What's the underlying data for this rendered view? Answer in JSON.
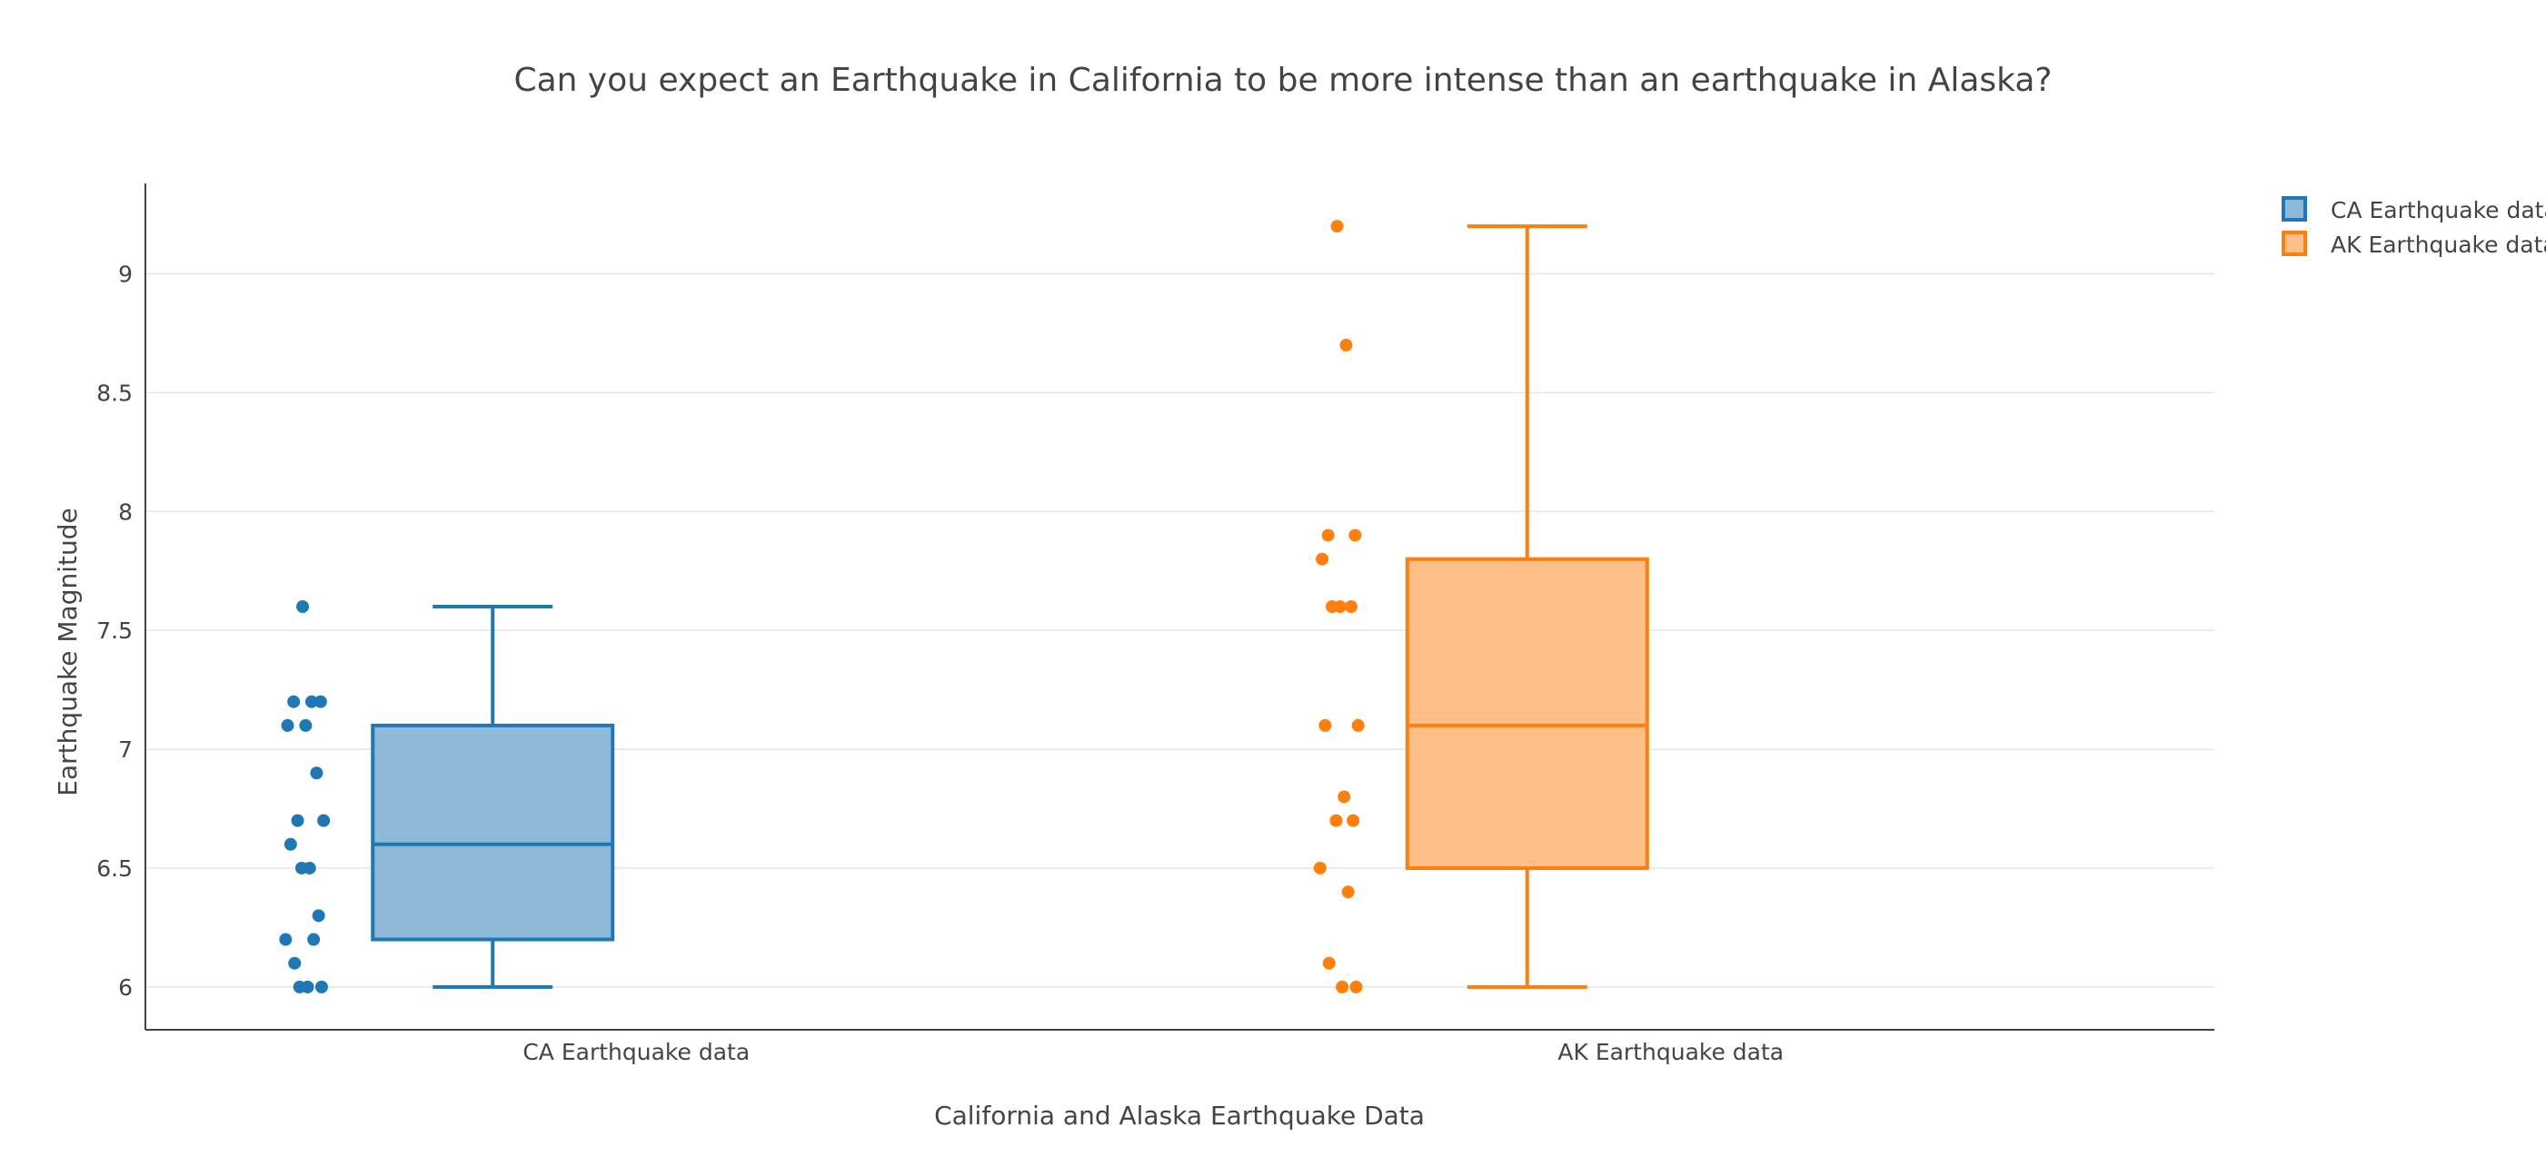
{
  "chart_data": {
    "type": "box",
    "title": "Can you expect an Earthquake in California to be more intense than an earthquake in Alaska?",
    "xlabel": "California and Alaska Earthquake Data",
    "ylabel": "Earthquake Magnitude",
    "categories": [
      "CA Earthquake data",
      "AK Earthquake data"
    ],
    "ylim": [
      5.82,
      9.38
    ],
    "yticks": [
      "6",
      "6.5",
      "7",
      "7.5",
      "8",
      "8.5",
      "9"
    ],
    "grid": true,
    "legend_position": "top-right",
    "series": [
      {
        "name": "CA Earthquake data",
        "color": "#1f77b4",
        "fill": "#8fb9d9",
        "box": {
          "min": 6.0,
          "q1": 6.2,
          "median": 6.6,
          "q3": 7.1,
          "max": 7.6
        },
        "points": [
          7.6,
          7.2,
          7.2,
          7.2,
          7.1,
          7.1,
          6.9,
          6.7,
          6.7,
          6.6,
          6.5,
          6.5,
          6.3,
          6.2,
          6.2,
          6.1,
          6.0,
          6.0,
          6.0
        ]
      },
      {
        "name": "AK Earthquake data",
        "color": "#ff7f0e",
        "fill": "#ffbf86",
        "box": {
          "min": 6.0,
          "q1": 6.5,
          "median": 7.1,
          "q3": 7.8,
          "max": 9.2
        },
        "points": [
          9.2,
          8.7,
          7.9,
          7.9,
          7.8,
          7.6,
          7.6,
          7.6,
          7.1,
          7.1,
          6.8,
          6.7,
          6.7,
          6.5,
          6.4,
          6.1,
          6.0,
          6.0
        ]
      }
    ]
  }
}
